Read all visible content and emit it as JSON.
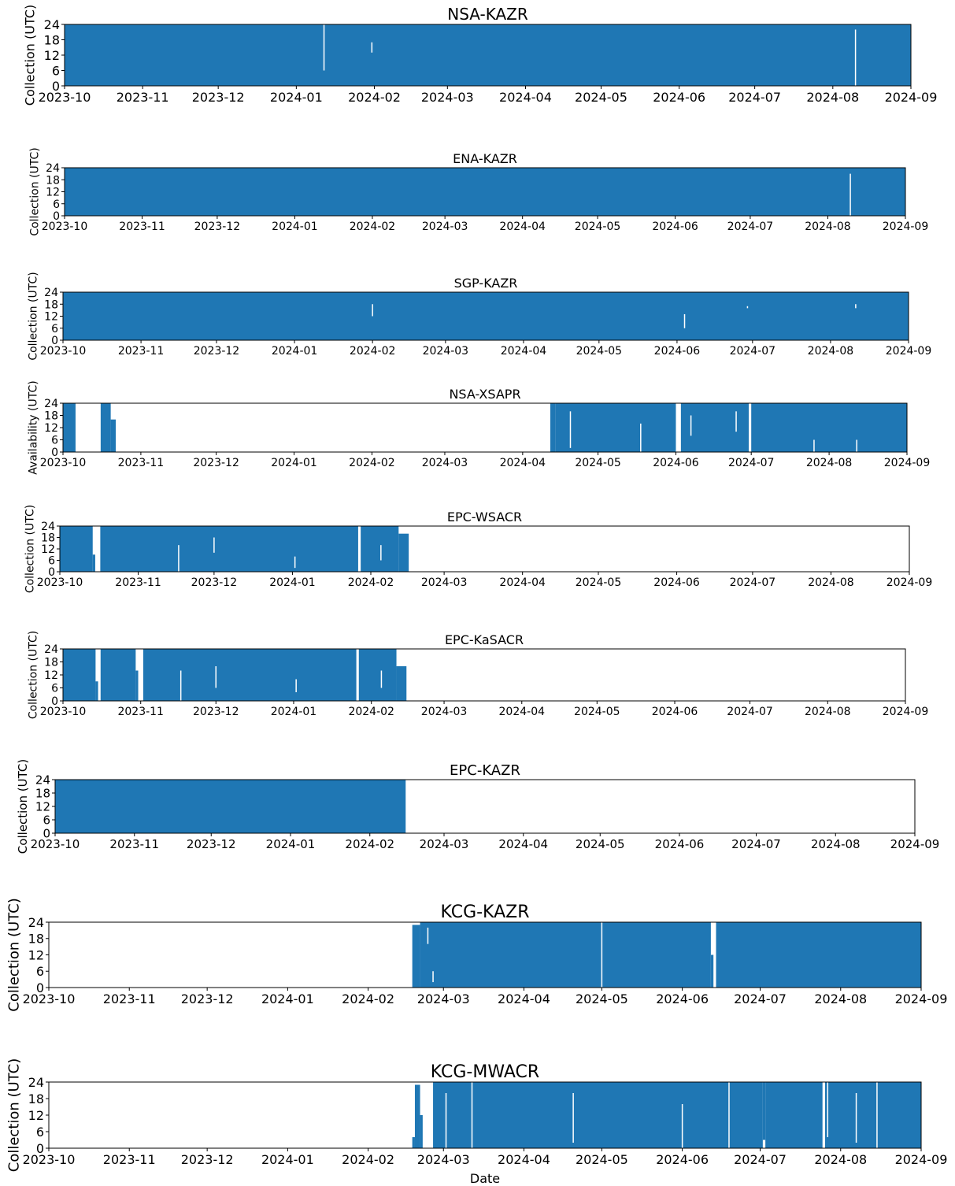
{
  "figure": {
    "xlabel": "Date",
    "fill_color": "#1f77b4",
    "background": "#ffffff"
  },
  "chart_data": [
    {
      "type": "scatter",
      "title": "NSA-KAZR",
      "ylabel": "Collection (UTC)",
      "yticks": [
        0,
        6,
        12,
        18,
        24
      ],
      "ylim": [
        0,
        24
      ],
      "xticks": [
        "2023-10",
        "2023-11",
        "2023-12",
        "2024-01",
        "2024-02",
        "2024-03",
        "2024-04",
        "2024-05",
        "2024-06",
        "2024-07",
        "2024-08",
        "2024-09"
      ],
      "xlim": [
        "2023-10-01",
        "2024-09-01"
      ],
      "coverage": [
        [
          "2023-10-01",
          "2024-09-01",
          0,
          24
        ]
      ],
      "gaps": [
        [
          "2024-01-12",
          "2024-01-12",
          6,
          24
        ],
        [
          "2024-01-31",
          "2024-01-31",
          13,
          17
        ],
        [
          "2024-08-10",
          "2024-08-10",
          0,
          22
        ]
      ]
    },
    {
      "type": "scatter",
      "title": "ENA-KAZR",
      "ylabel": "Collection (UTC)",
      "yticks": [
        0,
        6,
        12,
        18,
        24
      ],
      "ylim": [
        0,
        24
      ],
      "xticks": [
        "2023-10",
        "2023-11",
        "2023-12",
        "2024-01",
        "2024-02",
        "2024-03",
        "2024-04",
        "2024-05",
        "2024-06",
        "2024-07",
        "2024-08",
        "2024-09"
      ],
      "xlim": [
        "2023-10-01",
        "2024-09-01"
      ],
      "coverage": [
        [
          "2023-10-01",
          "2024-09-01",
          0,
          24
        ]
      ],
      "gaps": [
        [
          "2024-08-10",
          "2024-08-10",
          0,
          21
        ]
      ]
    },
    {
      "type": "scatter",
      "title": "SGP-KAZR",
      "ylabel": "Collection (UTC)",
      "yticks": [
        0,
        6,
        12,
        18,
        24
      ],
      "ylim": [
        0,
        24
      ],
      "xticks": [
        "2023-10",
        "2023-11",
        "2023-12",
        "2024-01",
        "2024-02",
        "2024-03",
        "2024-04",
        "2024-05",
        "2024-06",
        "2024-07",
        "2024-08",
        "2024-09"
      ],
      "xlim": [
        "2023-10-01",
        "2024-09-01"
      ],
      "coverage": [
        [
          "2023-10-01",
          "2024-09-01",
          0,
          24
        ]
      ],
      "gaps": [
        [
          "2024-02-01",
          "2024-02-01",
          12,
          18
        ],
        [
          "2024-06-04",
          "2024-06-04",
          6,
          13
        ],
        [
          "2024-06-29",
          "2024-06-29",
          16,
          17
        ],
        [
          "2024-08-11",
          "2024-08-11",
          16,
          18
        ]
      ]
    },
    {
      "type": "scatter",
      "title": "NSA-XSAPR",
      "ylabel": "Availability (UTC)",
      "yticks": [
        0,
        6,
        12,
        18,
        24
      ],
      "ylim": [
        0,
        24
      ],
      "xticks": [
        "2023-10",
        "2023-11",
        "2023-12",
        "2024-01",
        "2024-02",
        "2024-03",
        "2024-04",
        "2024-05",
        "2024-06",
        "2024-07",
        "2024-08",
        "2024-09"
      ],
      "xlim": [
        "2023-10-01",
        "2024-09-01"
      ],
      "coverage": [
        [
          "2023-10-01",
          "2023-10-06",
          0,
          24
        ],
        [
          "2023-10-16",
          "2023-10-20",
          0,
          24
        ],
        [
          "2023-10-20",
          "2023-10-22",
          0,
          16
        ],
        [
          "2024-04-12",
          "2024-04-14",
          0,
          24
        ],
        [
          "2024-04-14",
          "2024-06-01",
          0,
          24
        ],
        [
          "2024-06-03",
          "2024-06-30",
          0,
          24
        ],
        [
          "2024-07-01",
          "2024-09-01",
          0,
          24
        ]
      ],
      "gaps": [
        [
          "2024-04-20",
          "2024-04-20",
          2,
          20
        ],
        [
          "2024-05-18",
          "2024-05-18",
          0,
          14
        ],
        [
          "2024-06-07",
          "2024-06-07",
          8,
          18
        ],
        [
          "2024-06-25",
          "2024-06-26",
          10,
          20
        ],
        [
          "2024-07-26",
          "2024-07-26",
          0,
          6
        ],
        [
          "2024-08-12",
          "2024-08-12",
          0,
          6
        ]
      ]
    },
    {
      "type": "scatter",
      "title": "EPC-WSACR",
      "ylabel": "Collection (UTC)",
      "yticks": [
        0,
        6,
        12,
        18,
        24
      ],
      "ylim": [
        0,
        24
      ],
      "xticks": [
        "2023-10",
        "2023-11",
        "2023-12",
        "2024-01",
        "2024-02",
        "2024-03",
        "2024-04",
        "2024-05",
        "2024-06",
        "2024-07",
        "2024-08",
        "2024-09"
      ],
      "xlim": [
        "2023-10-01",
        "2024-09-01"
      ],
      "coverage": [
        [
          "2023-10-01",
          "2023-10-14",
          0,
          24
        ],
        [
          "2023-10-14",
          "2023-10-15",
          0,
          9
        ],
        [
          "2023-10-17",
          "2024-01-27",
          0,
          24
        ],
        [
          "2024-01-28",
          "2024-02-12",
          0,
          24
        ],
        [
          "2024-02-12",
          "2024-02-16",
          0,
          20
        ]
      ],
      "gaps": [
        [
          "2023-11-17",
          "2023-11-17",
          0,
          14
        ],
        [
          "2023-12-01",
          "2023-12-01",
          10,
          18
        ],
        [
          "2024-01-02",
          "2024-01-02",
          2,
          8
        ],
        [
          "2024-02-05",
          "2024-02-05",
          6,
          14
        ]
      ]
    },
    {
      "type": "scatter",
      "title": "EPC-KaSACR",
      "ylabel": "Collection (UTC)",
      "yticks": [
        0,
        6,
        12,
        18,
        24
      ],
      "ylim": [
        0,
        24
      ],
      "xticks": [
        "2023-10",
        "2023-11",
        "2023-12",
        "2024-01",
        "2024-02",
        "2024-03",
        "2024-04",
        "2024-05",
        "2024-06",
        "2024-07",
        "2024-08",
        "2024-09"
      ],
      "xlim": [
        "2023-10-01",
        "2024-09-01"
      ],
      "coverage": [
        [
          "2023-10-01",
          "2023-10-14",
          0,
          24
        ],
        [
          "2023-10-14",
          "2023-10-15",
          0,
          9
        ],
        [
          "2023-10-16",
          "2023-10-30",
          0,
          24
        ],
        [
          "2023-10-30",
          "2023-10-31",
          0,
          14
        ],
        [
          "2023-11-02",
          "2024-01-26",
          0,
          24
        ],
        [
          "2024-01-27",
          "2024-02-11",
          0,
          24
        ],
        [
          "2024-02-11",
          "2024-02-15",
          0,
          16
        ]
      ],
      "gaps": [
        [
          "2023-11-17",
          "2023-11-17",
          0,
          14
        ],
        [
          "2023-12-01",
          "2023-12-01",
          6,
          16
        ],
        [
          "2024-01-02",
          "2024-01-02",
          4,
          10
        ],
        [
          "2024-02-05",
          "2024-02-05",
          6,
          14
        ]
      ]
    },
    {
      "type": "scatter",
      "title": "EPC-KAZR",
      "ylabel": "Collection (UTC)",
      "yticks": [
        0,
        6,
        12,
        18,
        24
      ],
      "ylim": [
        0,
        24
      ],
      "xticks": [
        "2023-10",
        "2023-11",
        "2023-12",
        "2024-01",
        "2024-02",
        "2024-03",
        "2024-04",
        "2024-05",
        "2024-06",
        "2024-07",
        "2024-08",
        "2024-09"
      ],
      "xlim": [
        "2023-10-01",
        "2024-09-01"
      ],
      "coverage": [
        [
          "2023-10-01",
          "2024-02-15",
          0,
          24
        ]
      ],
      "gaps": []
    },
    {
      "type": "scatter",
      "title": "KCG-KAZR",
      "ylabel": "Collection (UTC)",
      "yticks": [
        0,
        6,
        12,
        18,
        24
      ],
      "ylim": [
        0,
        24
      ],
      "xticks": [
        "2023-10",
        "2023-11",
        "2023-12",
        "2024-01",
        "2024-02",
        "2024-03",
        "2024-04",
        "2024-05",
        "2024-06",
        "2024-07",
        "2024-08",
        "2024-09"
      ],
      "xlim": [
        "2023-10-01",
        "2024-09-01"
      ],
      "coverage": [
        [
          "2024-02-18",
          "2024-02-21",
          0,
          23
        ],
        [
          "2024-02-21",
          "2024-06-12",
          0,
          24
        ],
        [
          "2024-06-12",
          "2024-06-13",
          0,
          12
        ],
        [
          "2024-06-14",
          "2024-09-01",
          0,
          24
        ]
      ],
      "gaps": [
        [
          "2024-02-24",
          "2024-02-24",
          16,
          22
        ],
        [
          "2024-05-01",
          "2024-05-01",
          0,
          24
        ],
        [
          "2024-02-26",
          "2024-02-26",
          2,
          6
        ]
      ]
    },
    {
      "type": "scatter",
      "title": "KCG-MWACR",
      "ylabel": "Collection (UTC)",
      "yticks": [
        0,
        6,
        12,
        18,
        24
      ],
      "ylim": [
        0,
        24
      ],
      "xticks": [
        "2023-10",
        "2023-11",
        "2023-12",
        "2024-01",
        "2024-02",
        "2024-03",
        "2024-04",
        "2024-05",
        "2024-06",
        "2024-07",
        "2024-08",
        "2024-09"
      ],
      "xlim": [
        "2023-10-01",
        "2024-09-01"
      ],
      "coverage": [
        [
          "2024-02-18",
          "2024-02-19",
          0,
          4
        ],
        [
          "2024-02-19",
          "2024-02-21",
          0,
          23
        ],
        [
          "2024-02-21",
          "2024-02-22",
          0,
          12
        ],
        [
          "2024-02-26",
          "2024-07-02",
          0,
          24
        ],
        [
          "2024-07-02",
          "2024-07-03",
          3,
          24
        ],
        [
          "2024-07-03",
          "2024-07-25",
          0,
          24
        ],
        [
          "2024-07-26",
          "2024-09-01",
          0,
          24
        ]
      ],
      "gaps": [
        [
          "2024-03-02",
          "2024-03-02",
          0,
          20
        ],
        [
          "2024-03-12",
          "2024-03-12",
          0,
          24
        ],
        [
          "2024-04-20",
          "2024-04-20",
          2,
          20
        ],
        [
          "2024-06-01",
          "2024-06-01",
          0,
          16
        ],
        [
          "2024-06-19",
          "2024-06-19",
          0,
          24
        ],
        [
          "2024-07-27",
          "2024-07-27",
          4,
          24
        ],
        [
          "2024-08-07",
          "2024-08-07",
          2,
          20
        ],
        [
          "2024-08-15",
          "2024-08-15",
          0,
          24
        ]
      ]
    }
  ]
}
